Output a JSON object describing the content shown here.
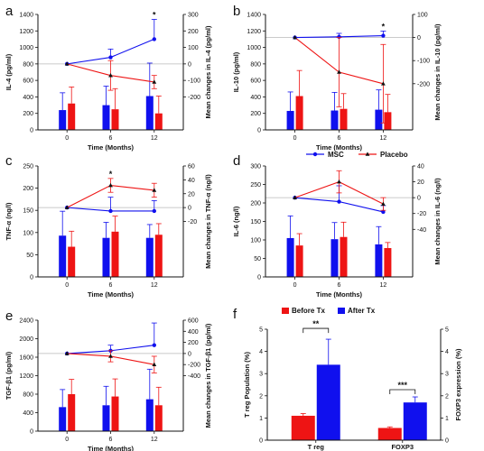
{
  "colors": {
    "msc": "#1010ee",
    "placebo": "#ee1414",
    "reference_line": "#b8b8b8",
    "axis": "#111111"
  },
  "legend_top": {
    "items": [
      "MSC",
      "Placebo"
    ]
  },
  "legend_f": {
    "items": [
      "Before Tx",
      "After Tx"
    ]
  },
  "chart_data": [
    {
      "panel": "a",
      "type": "bar+line",
      "categories": [
        "0",
        "6",
        "12"
      ],
      "xlabel": "Time (Months)",
      "ylabel_left": "IL-4 (pg/ml)",
      "ylim_left": [
        0,
        1400
      ],
      "yticks_left": [
        0,
        200,
        400,
        600,
        800,
        1000,
        1200,
        1400
      ],
      "ylabel_right": "Mean changes in IL-4 (pg/ml)",
      "ylim_right": [
        -400,
        300
      ],
      "yticks_right": [
        -200,
        -100,
        0,
        100,
        200,
        300
      ],
      "bars": [
        {
          "series": "MSC",
          "values": [
            240,
            300,
            410
          ],
          "errors": [
            210,
            230,
            400
          ]
        },
        {
          "series": "Placebo",
          "values": [
            320,
            250,
            200
          ],
          "errors": [
            200,
            250,
            210
          ]
        }
      ],
      "lines": [
        {
          "series": "MSC",
          "values": [
            0,
            40,
            150
          ],
          "errors": [
            0,
            50,
            120
          ]
        },
        {
          "series": "Placebo",
          "values": [
            0,
            -70,
            -110
          ],
          "errors": [
            0,
            90,
            40
          ]
        }
      ],
      "sig_marks": [
        {
          "category": "12",
          "label": "*"
        }
      ]
    },
    {
      "panel": "b",
      "type": "bar+line",
      "categories": [
        "0",
        "6",
        "12"
      ],
      "xlabel": "Time (Months)",
      "ylabel_left": "IL-10 (pg/ml)",
      "ylim_left": [
        0,
        1400
      ],
      "yticks_left": [
        0,
        200,
        400,
        600,
        800,
        1000,
        1200,
        1400
      ],
      "ylabel_right": "Mean changes in IL-10 (pg/ml)",
      "ylim_right": [
        -400,
        100
      ],
      "yticks_right": [
        -200,
        -100,
        0,
        100
      ],
      "bars": [
        {
          "series": "MSC",
          "values": [
            230,
            235,
            245
          ],
          "errors": [
            230,
            220,
            240
          ]
        },
        {
          "series": "Placebo",
          "values": [
            410,
            255,
            215
          ],
          "errors": [
            310,
            185,
            215
          ]
        }
      ],
      "lines": [
        {
          "series": "MSC",
          "values": [
            0,
            3,
            8
          ],
          "errors": [
            0,
            15,
            20
          ]
        },
        {
          "series": "Placebo",
          "values": [
            0,
            -150,
            -200
          ],
          "errors": [
            0,
            150,
            170
          ]
        }
      ],
      "sig_marks": [
        {
          "category": "12",
          "label": "*"
        }
      ]
    },
    {
      "panel": "c",
      "type": "bar+line",
      "categories": [
        "0",
        "6",
        "12"
      ],
      "xlabel": "Time (Months)",
      "ylabel_left": "TNF-α (ng/l)",
      "ylim_left": [
        0,
        250
      ],
      "yticks_left": [
        0,
        50,
        100,
        150,
        200,
        250
      ],
      "ylabel_right": "Mean changes in TNF-α (ng/l)",
      "ylim_right": [
        -100,
        60
      ],
      "yticks_right": [
        -20,
        0,
        20,
        40,
        60
      ],
      "bars": [
        {
          "series": "MSC",
          "values": [
            93,
            88,
            88
          ],
          "errors": [
            55,
            35,
            30
          ]
        },
        {
          "series": "Placebo",
          "values": [
            68,
            102,
            95
          ],
          "errors": [
            35,
            35,
            25
          ]
        }
      ],
      "lines": [
        {
          "series": "MSC",
          "values": [
            0,
            -5,
            -5
          ],
          "errors": [
            0,
            20,
            15
          ]
        },
        {
          "series": "Placebo",
          "values": [
            0,
            32,
            25
          ],
          "errors": [
            0,
            10,
            10
          ]
        }
      ],
      "sig_marks": [
        {
          "category": "6",
          "label": "*"
        }
      ]
    },
    {
      "panel": "d",
      "type": "bar+line",
      "categories": [
        "0",
        "6",
        "12"
      ],
      "xlabel": "Time (Months)",
      "ylabel_left": "IL-6 (ng/l)",
      "ylim_left": [
        0,
        300
      ],
      "yticks_left": [
        0,
        50,
        100,
        150,
        200,
        250,
        300
      ],
      "ylabel_right": "Mean changes in IL-6 (ng/l)",
      "ylim_right": [
        -100,
        40
      ],
      "yticks_right": [
        -40,
        -20,
        0,
        20,
        40
      ],
      "bars": [
        {
          "series": "MSC",
          "values": [
            105,
            102,
            88
          ],
          "errors": [
            60,
            45,
            48
          ]
        },
        {
          "series": "Placebo",
          "values": [
            85,
            108,
            78
          ],
          "errors": [
            32,
            40,
            15
          ]
        }
      ],
      "lines": [
        {
          "series": "MSC",
          "values": [
            0,
            -5,
            -18
          ],
          "errors": [
            0,
            20,
            8
          ]
        },
        {
          "series": "Placebo",
          "values": [
            0,
            20,
            -8
          ],
          "errors": [
            0,
            14,
            8
          ]
        }
      ],
      "sig_marks": []
    },
    {
      "panel": "e",
      "type": "bar+line",
      "categories": [
        "0",
        "6",
        "12"
      ],
      "xlabel": "Time (Months)",
      "ylabel_left": "TGF-β1 (pg/ml)",
      "ylim_left": [
        0,
        2400
      ],
      "yticks_left": [
        0,
        400,
        800,
        1200,
        1600,
        2000,
        2400
      ],
      "ylabel_right": "Mean changes in TGF-β1 (pg/ml)",
      "ylim_right": [
        -1400,
        600
      ],
      "yticks_right": [
        -400,
        -200,
        0,
        200,
        400,
        600
      ],
      "bars": [
        {
          "series": "MSC",
          "values": [
            520,
            560,
            690
          ],
          "errors": [
            380,
            410,
            650
          ]
        },
        {
          "series": "Placebo",
          "values": [
            800,
            750,
            560
          ],
          "errors": [
            320,
            380,
            390
          ]
        }
      ],
      "lines": [
        {
          "series": "MSC",
          "values": [
            0,
            50,
            150
          ],
          "errors": [
            0,
            100,
            400
          ]
        },
        {
          "series": "Placebo",
          "values": [
            0,
            -50,
            -200
          ],
          "errors": [
            0,
            100,
            150
          ]
        }
      ],
      "sig_marks": []
    },
    {
      "panel": "f",
      "type": "bar",
      "categories": [
        "T reg",
        "FOXP3"
      ],
      "ylabel_left": "T reg Population (%)",
      "ylim_left": [
        0,
        5
      ],
      "yticks_left": [
        0,
        1,
        2,
        3,
        4,
        5
      ],
      "ylabel_right": "FOXP3 expression (%)",
      "ylim_right": [
        0,
        5
      ],
      "yticks_right": [
        0,
        1,
        2,
        3,
        4,
        5
      ],
      "series": [
        {
          "name": "Before Tx",
          "values": [
            1.1,
            0.55
          ],
          "errors": [
            0.1,
            0.05
          ]
        },
        {
          "name": "After Tx",
          "values": [
            3.4,
            1.7
          ],
          "errors": [
            1.15,
            0.25
          ]
        }
      ],
      "sig_marks": [
        {
          "category": "T reg",
          "label": "**"
        },
        {
          "category": "FOXP3",
          "label": "***"
        }
      ]
    }
  ]
}
